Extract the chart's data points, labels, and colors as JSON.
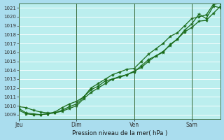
{
  "xlabel": "Pression niveau de la mer( hPa )",
  "bg_color": "#aaddee",
  "plot_bg_color": "#bbeeee",
  "grid_color": "#ffffff",
  "line_color": "#1a6b1a",
  "marker_color": "#1a6b1a",
  "ylim": [
    1008.5,
    1021.5
  ],
  "yticks": [
    1009,
    1010,
    1011,
    1012,
    1013,
    1014,
    1015,
    1016,
    1017,
    1018,
    1019,
    1020,
    1021
  ],
  "xtick_labels": [
    "Jeu",
    "Dim",
    "Ven",
    "Sam"
  ],
  "xtick_positions": [
    0,
    8,
    16,
    24
  ],
  "vline_positions": [
    0,
    8,
    16,
    24
  ],
  "xlim": [
    0,
    28
  ],
  "series1_x": [
    0,
    1,
    2,
    3,
    4,
    5,
    6,
    7,
    8,
    9,
    10,
    11,
    12,
    13,
    14,
    15,
    16,
    17,
    18,
    19,
    20,
    21,
    22,
    23,
    24,
    25,
    26,
    27,
    28
  ],
  "series1_y": [
    1009.7,
    1009.2,
    1009.1,
    1009.0,
    1009.1,
    1009.3,
    1009.8,
    1010.2,
    1010.5,
    1011.0,
    1011.8,
    1012.2,
    1012.8,
    1013.0,
    1013.2,
    1013.5,
    1013.9,
    1014.3,
    1015.0,
    1015.6,
    1016.0,
    1016.9,
    1017.5,
    1018.5,
    1019.2,
    1020.3,
    1019.8,
    1021.2,
    1021.0
  ],
  "series2_x": [
    0,
    1,
    2,
    3,
    4,
    5,
    6,
    7,
    8,
    9,
    10,
    11,
    12,
    13,
    14,
    15,
    16,
    17,
    18,
    19,
    20,
    21,
    22,
    23,
    24,
    25,
    26,
    27,
    28
  ],
  "series2_y": [
    1009.5,
    1009.1,
    1009.0,
    1009.0,
    1009.1,
    1009.2,
    1009.4,
    1009.7,
    1010.0,
    1010.8,
    1011.5,
    1012.0,
    1012.5,
    1013.0,
    1013.3,
    1013.5,
    1013.8,
    1014.5,
    1015.2,
    1015.6,
    1016.1,
    1016.8,
    1017.5,
    1018.3,
    1018.8,
    1019.5,
    1019.6,
    1020.4,
    1021.2
  ],
  "series3_x": [
    0,
    1,
    2,
    3,
    4,
    5,
    6,
    7,
    8,
    9,
    10,
    11,
    12,
    13,
    14,
    15,
    16,
    17,
    18,
    19,
    20,
    21,
    22,
    23,
    24,
    25,
    26,
    27,
    28
  ],
  "series3_y": [
    1009.9,
    1009.8,
    1009.5,
    1009.3,
    1009.2,
    1009.2,
    1009.5,
    1009.9,
    1010.2,
    1011.0,
    1012.0,
    1012.5,
    1013.0,
    1013.5,
    1013.8,
    1014.1,
    1014.2,
    1015.0,
    1015.8,
    1016.4,
    1017.0,
    1017.8,
    1018.2,
    1019.0,
    1019.8,
    1020.0,
    1020.2,
    1021.4,
    1021.5
  ]
}
